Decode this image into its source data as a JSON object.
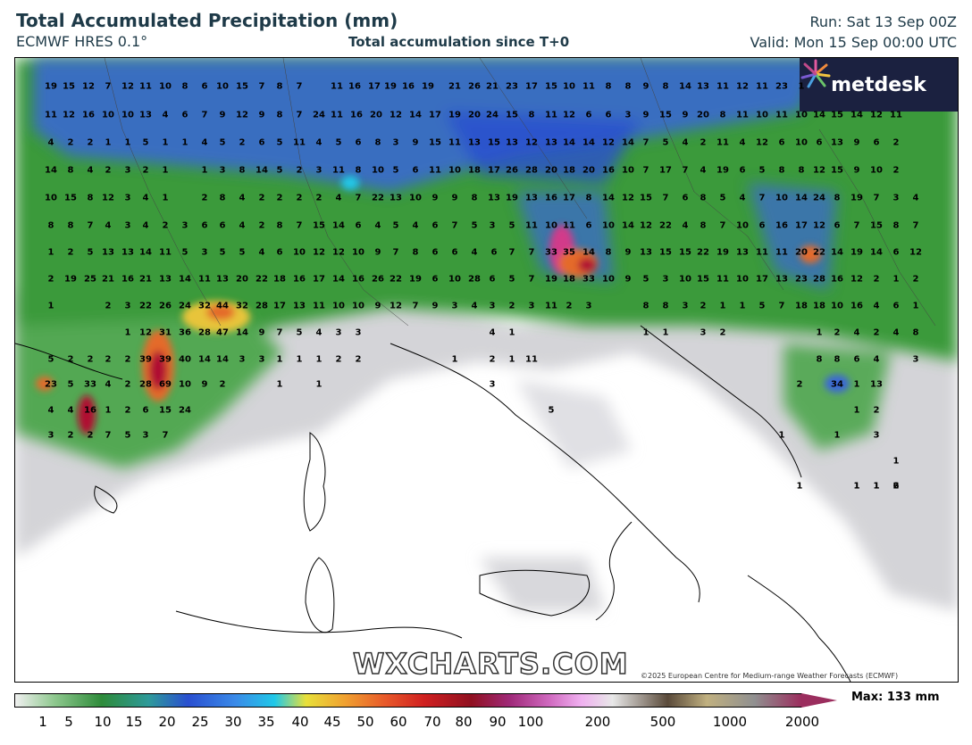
{
  "header": {
    "title": "Total Accumulated Precipitation (mm)",
    "model": "ECMWF HRES 0.1°",
    "subtitle": "Total accumulation since T+0",
    "run": "Run: Sat 13 Sep 00Z",
    "valid": "Valid: Mon 15 Sep 00:00 UTC"
  },
  "brand": {
    "logo_text": "metdesk",
    "watermark": "WXCHARTS.COM",
    "copyright": "©2025 European Centre for Medium-range Weather Forecasts (ECMWF)"
  },
  "legend": {
    "max_label": "Max: 133 mm",
    "ticks": [
      "1",
      "5",
      "10",
      "15",
      "20",
      "25",
      "30",
      "35",
      "40",
      "45",
      "50",
      "60",
      "70",
      "80",
      "90",
      "100",
      "200",
      "500",
      "1000",
      "2000"
    ]
  },
  "colors": {
    "title": "#1e3a48",
    "logo_bg": "#1b2140",
    "scale_end": "#9b2e5e"
  },
  "map_values": [
    "19",
    "15",
    "12",
    "7",
    "12",
    "11",
    "10",
    "8",
    "6",
    "10",
    "15",
    "7",
    "8",
    "7",
    "11",
    "16",
    "17",
    "19",
    "16",
    "19",
    "21",
    "26",
    "21",
    "23",
    "17",
    "15",
    "10",
    "11",
    "8",
    "8",
    "9",
    "8",
    "14",
    "13",
    "11",
    "12",
    "11",
    "23",
    "1",
    "11",
    "12",
    "16",
    "10",
    "10",
    "13",
    "4",
    "6",
    "7",
    "9",
    "12",
    "9",
    "8",
    "7",
    "24",
    "11",
    "16",
    "20",
    "12",
    "14",
    "17",
    "19",
    "20",
    "24",
    "15",
    "8",
    "11",
    "12",
    "6",
    "6",
    "3",
    "9",
    "15",
    "9",
    "20",
    "8",
    "11",
    "10",
    "11",
    "10",
    "14",
    "15",
    "14",
    "12",
    "11",
    "4",
    "2",
    "2",
    "1",
    "1",
    "5",
    "1",
    "1",
    "4",
    "5",
    "2",
    "6",
    "5",
    "11",
    "4",
    "5",
    "6",
    "8",
    "3",
    "9",
    "15",
    "11",
    "13",
    "15",
    "13",
    "12",
    "13",
    "14",
    "14",
    "12",
    "14",
    "7",
    "5",
    "4",
    "2",
    "11",
    "4",
    "12",
    "6",
    "10",
    "6",
    "13",
    "9",
    "6",
    "2",
    "14",
    "8",
    "4",
    "2",
    "3",
    "2",
    "1",
    "1",
    "3",
    "8",
    "14",
    "5",
    "2",
    "3",
    "11",
    "8",
    "10",
    "5",
    "6",
    "11",
    "10",
    "18",
    "17",
    "26",
    "28",
    "20",
    "18",
    "20",
    "16",
    "10",
    "7",
    "17",
    "7",
    "4",
    "19",
    "6",
    "5",
    "8",
    "8",
    "12",
    "15",
    "9",
    "10",
    "2",
    "10",
    "15",
    "8",
    "12",
    "3",
    "4",
    "1",
    "2",
    "8",
    "4",
    "2",
    "2",
    "2",
    "2",
    "4",
    "7",
    "22",
    "13",
    "10",
    "9",
    "9",
    "8",
    "13",
    "19",
    "13",
    "16",
    "17",
    "8",
    "14",
    "12",
    "15",
    "7",
    "6",
    "8",
    "5",
    "4",
    "7",
    "10",
    "14",
    "24",
    "8",
    "19",
    "7",
    "3",
    "4",
    "8",
    "8",
    "7",
    "4",
    "3",
    "4",
    "2",
    "3",
    "6",
    "6",
    "4",
    "2",
    "8",
    "7",
    "15",
    "14",
    "6",
    "4",
    "5",
    "4",
    "6",
    "7",
    "5",
    "3",
    "5",
    "11",
    "10",
    "11",
    "6",
    "10",
    "14",
    "12",
    "22",
    "4",
    "8",
    "7",
    "10",
    "6",
    "16",
    "17",
    "12",
    "6",
    "7",
    "15",
    "8",
    "7",
    "1",
    "2",
    "5",
    "13",
    "13",
    "14",
    "11",
    "5",
    "3",
    "5",
    "5",
    "4",
    "6",
    "10",
    "12",
    "12",
    "10",
    "9",
    "7",
    "8",
    "6",
    "6",
    "4",
    "6",
    "7",
    "7",
    "33",
    "35",
    "14",
    "8",
    "9",
    "13",
    "15",
    "15",
    "22",
    "19",
    "13",
    "11",
    "11",
    "20",
    "22",
    "14",
    "19",
    "14",
    "6",
    "12",
    "2",
    "19",
    "25",
    "21",
    "16",
    "21",
    "13",
    "14",
    "11",
    "13",
    "20",
    "22",
    "18",
    "16",
    "17",
    "14",
    "16",
    "26",
    "22",
    "19",
    "6",
    "10",
    "28",
    "6",
    "5",
    "7",
    "19",
    "18",
    "33",
    "10",
    "9",
    "5",
    "3",
    "10",
    "15",
    "11",
    "10",
    "17",
    "13",
    "23",
    "28",
    "16",
    "12",
    "2",
    "1",
    "2",
    "1",
    "2",
    "3",
    "22",
    "26",
    "24",
    "32",
    "44",
    "32",
    "28",
    "17",
    "13",
    "11",
    "10",
    "10",
    "9",
    "12",
    "7",
    "9",
    "3",
    "4",
    "3",
    "2",
    "3",
    "11",
    "2",
    "3",
    "8",
    "8",
    "3",
    "2",
    "1",
    "1",
    "5",
    "7",
    "18",
    "18",
    "10",
    "16",
    "4",
    "6",
    "1",
    "1",
    "12",
    "31",
    "36",
    "28",
    "47",
    "14",
    "9",
    "7",
    "5",
    "4",
    "3",
    "3",
    "4",
    "1",
    "1",
    "1",
    "3",
    "2",
    "1",
    "2",
    "4",
    "2",
    "4",
    "8",
    "5",
    "2",
    "2",
    "2",
    "2",
    "39",
    "39",
    "40",
    "14",
    "14",
    "3",
    "3",
    "1",
    "1",
    "1",
    "2",
    "2",
    "1",
    "2",
    "1",
    "11",
    "8",
    "8",
    "6",
    "4",
    "3",
    "23",
    "5",
    "33",
    "4",
    "2",
    "28",
    "69",
    "10",
    "9",
    "2",
    "1",
    "1",
    "3",
    "2",
    "34",
    "1",
    "13",
    "4",
    "4",
    "16",
    "1",
    "2",
    "6",
    "15",
    "24",
    "5",
    "1",
    "2",
    "3",
    "2",
    "2",
    "7",
    "5",
    "3",
    "7",
    "1",
    "1",
    "3",
    "1",
    "1",
    "2",
    "6",
    "1",
    "1",
    "1",
    "1"
  ]
}
